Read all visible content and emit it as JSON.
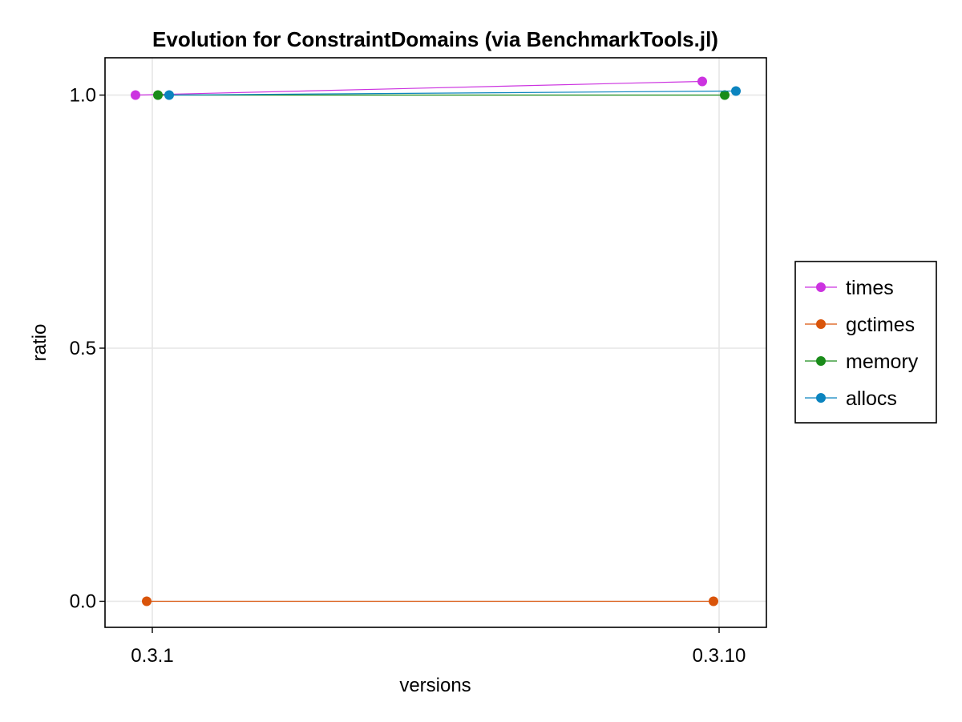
{
  "chart_data": {
    "type": "line",
    "title": "Evolution for ConstraintDomains (via BenchmarkTools.jl)",
    "xlabel": "versions",
    "ylabel": "ratio",
    "categories": [
      "0.3.1",
      "0.3.10"
    ],
    "y_ticks": [
      "0.0",
      "0.5",
      "1.0"
    ],
    "y_tick_values": [
      0.0,
      0.5,
      1.0
    ],
    "ylim": [
      -0.06,
      1.09
    ],
    "grid": true,
    "legend_position": "right",
    "series": [
      {
        "name": "times",
        "color": "#cc33e0",
        "values": [
          1.0,
          1.027
        ]
      },
      {
        "name": "gctimes",
        "color": "#d9540a",
        "values": [
          0.0,
          0.0
        ]
      },
      {
        "name": "memory",
        "color": "#1a8c1a",
        "values": [
          1.0,
          1.0
        ]
      },
      {
        "name": "allocs",
        "color": "#0b84bf",
        "values": [
          1.0,
          1.008
        ]
      }
    ]
  }
}
